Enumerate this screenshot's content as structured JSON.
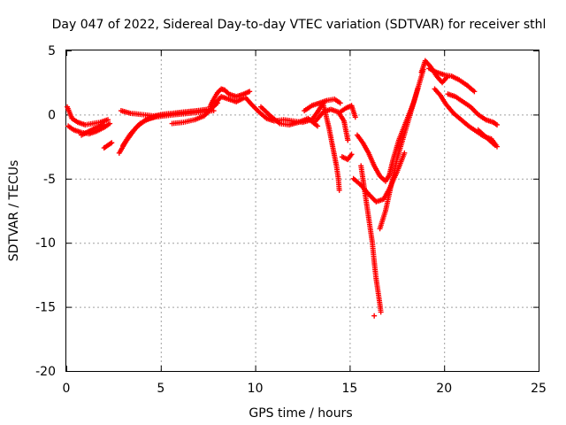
{
  "chart_data": {
    "type": "scatter",
    "title": "Day 047 of 2022, Sidereal Day-to-day VTEC variation (SDTVAR) for receiver sthl",
    "xlabel": "GPS time / hours",
    "ylabel": "SDTVAR / TECUs",
    "xlim": [
      0,
      25
    ],
    "ylim": [
      -20,
      5
    ],
    "grid": true,
    "marker": "plus",
    "x_ticks": [
      0,
      5,
      10,
      15,
      20,
      25
    ],
    "y_ticks": [
      5,
      0,
      -5,
      -10,
      -15,
      -20
    ],
    "x_tick_labels": [
      "0",
      "5",
      "10",
      "15",
      "20",
      "25"
    ],
    "y_tick_labels": [
      "5",
      "0",
      "-5",
      "-10",
      "-15",
      "-20"
    ],
    "series": [
      {
        "name": "SDTVAR",
        "color": "#ff0000",
        "tracks": [
          {
            "name": "track-a",
            "x": [
              0.05,
              0.3,
              0.6,
              1.0,
              1.4,
              1.8,
              2.2
            ],
            "y": [
              0.6,
              -0.3,
              -0.6,
              -0.8,
              -0.7,
              -0.6,
              -0.4
            ]
          },
          {
            "name": "track-b",
            "x": [
              0.1,
              0.4,
              0.8,
              1.2,
              1.6,
              2.0,
              2.3
            ],
            "y": [
              -0.9,
              -1.2,
              -1.4,
              -1.5,
              -1.3,
              -1.0,
              -0.7
            ]
          },
          {
            "name": "track-c",
            "x": [
              0.8,
              1.2,
              1.6,
              2.0
            ],
            "y": [
              -1.6,
              -1.3,
              -1.0,
              -0.8
            ]
          },
          {
            "name": "track-d",
            "x": [
              2.0,
              2.2,
              2.4
            ],
            "y": [
              -2.6,
              -2.4,
              -2.2
            ]
          },
          {
            "name": "track-e",
            "x": [
              2.8,
              3.2,
              3.7,
              4.2,
              4.7,
              5.2,
              5.8,
              6.5,
              7.2,
              7.8
            ],
            "y": [
              -3.0,
              -2.0,
              -1.0,
              -0.4,
              -0.2,
              -0.1,
              0.0,
              0.1,
              0.2,
              0.3
            ]
          },
          {
            "name": "track-f",
            "x": [
              3.0,
              3.4,
              3.9,
              4.4,
              5.0,
              5.6,
              6.2,
              6.9,
              7.4
            ],
            "y": [
              -2.4,
              -1.5,
              -0.7,
              -0.3,
              0.0,
              0.1,
              0.2,
              0.3,
              0.4
            ]
          },
          {
            "name": "track-g",
            "x": [
              2.9,
              3.4,
              4.0,
              4.6,
              5.2,
              5.8,
              6.4,
              7.0,
              7.6
            ],
            "y": [
              0.3,
              0.1,
              0.0,
              -0.1,
              0.0,
              0.1,
              0.2,
              0.3,
              0.4
            ]
          },
          {
            "name": "track-h",
            "x": [
              5.6,
              6.2,
              6.8,
              7.3,
              7.7,
              8.0
            ],
            "y": [
              -0.7,
              -0.6,
              -0.4,
              -0.1,
              0.5,
              0.9
            ]
          },
          {
            "name": "track-i",
            "x": [
              7.6,
              7.8,
              8.0,
              8.2,
              8.4,
              8.6,
              9.0,
              9.4,
              9.7
            ],
            "y": [
              0.6,
              1.2,
              1.7,
              2.0,
              1.9,
              1.6,
              1.4,
              1.6,
              1.8
            ]
          },
          {
            "name": "track-j",
            "x": [
              7.9,
              8.2,
              8.6,
              9.0,
              9.4
            ],
            "y": [
              0.9,
              1.4,
              1.2,
              1.0,
              1.3
            ]
          },
          {
            "name": "track-k",
            "x": [
              9.5,
              9.8,
              10.2,
              10.6,
              11.0,
              11.5,
              12.0,
              12.5,
              13.0,
              13.3,
              13.6
            ],
            "y": [
              1.3,
              0.8,
              0.2,
              -0.3,
              -0.5,
              -0.4,
              -0.5,
              -0.6,
              -0.4,
              0.2,
              0.9
            ]
          },
          {
            "name": "track-l",
            "x": [
              10.3,
              10.8,
              11.3,
              11.8,
              12.3,
              12.8,
              13.3
            ],
            "y": [
              0.6,
              -0.1,
              -0.7,
              -0.8,
              -0.6,
              -0.3,
              -0.9
            ]
          },
          {
            "name": "track-m",
            "x": [
              12.6,
              13.0,
              13.4,
              13.8,
              14.2,
              14.5
            ],
            "y": [
              0.3,
              0.7,
              0.9,
              1.1,
              1.2,
              0.9
            ]
          },
          {
            "name": "track-n",
            "x": [
              13.6,
              13.9,
              14.1,
              14.3,
              14.4,
              14.45
            ],
            "y": [
              0.8,
              -1.0,
              -2.5,
              -4.0,
              -5.0,
              -5.9
            ]
          },
          {
            "name": "track-o",
            "x": [
              13.2,
              13.6,
              14.0,
              14.4,
              14.7,
              14.9
            ],
            "y": [
              -0.5,
              0.2,
              0.4,
              0.2,
              -0.5,
              -2.0
            ]
          },
          {
            "name": "track-p",
            "x": [
              14.5,
              14.8,
              15.1,
              15.3
            ],
            "y": [
              0.2,
              0.5,
              0.7,
              -0.2
            ]
          },
          {
            "name": "track-q",
            "x": [
              14.6,
              14.9,
              15.1
            ],
            "y": [
              -3.3,
              -3.5,
              -3.1
            ]
          },
          {
            "name": "track-r",
            "x": [
              15.6,
              15.8,
              16.0,
              16.2,
              16.3,
              16.4,
              16.5,
              16.6,
              16.65
            ],
            "y": [
              -4.0,
              -6.0,
              -8.0,
              -10.0,
              -11.5,
              -12.8,
              -13.8,
              -14.8,
              -15.4
            ]
          },
          {
            "name": "track-s",
            "x": [
              16.3
            ],
            "y": [
              -15.7
            ]
          },
          {
            "name": "track-t",
            "x": [
              15.4,
              15.7,
              16.0,
              16.3,
              16.6,
              16.9,
              17.1,
              17.3,
              17.6,
              18.0,
              18.4,
              18.7,
              18.9
            ],
            "y": [
              -1.6,
              -2.2,
              -3.0,
              -4.0,
              -4.8,
              -5.2,
              -4.7,
              -3.5,
              -2.0,
              -0.5,
              1.0,
              2.5,
              3.5
            ]
          },
          {
            "name": "track-u",
            "x": [
              15.2,
              15.6,
              16.0,
              16.4,
              16.8,
              17.1,
              17.5,
              17.9
            ],
            "y": [
              -5.0,
              -5.5,
              -6.2,
              -6.8,
              -6.6,
              -5.8,
              -4.5,
              -3.0
            ]
          },
          {
            "name": "track-v",
            "x": [
              16.6,
              16.9,
              17.2,
              17.5,
              17.9,
              18.3,
              18.6
            ],
            "y": [
              -8.9,
              -7.5,
              -5.5,
              -3.5,
              -1.5,
              0.5,
              2.0
            ]
          },
          {
            "name": "track-w",
            "x": [
              18.8,
              19.0,
              19.3,
              19.6,
              19.9,
              20.2
            ],
            "y": [
              3.3,
              4.2,
              3.7,
              3.0,
              2.5,
              3.0
            ]
          },
          {
            "name": "track-x",
            "x": [
              19.2,
              19.6,
              20.0,
              20.4,
              20.8,
              21.2,
              21.6
            ],
            "y": [
              3.6,
              3.3,
              3.1,
              3.0,
              2.7,
              2.3,
              1.8
            ]
          },
          {
            "name": "track-y",
            "x": [
              19.5,
              19.8,
              20.1,
              20.5,
              20.9,
              21.3,
              21.7,
              22.1,
              22.5,
              22.8
            ],
            "y": [
              2.0,
              1.5,
              0.8,
              0.1,
              -0.4,
              -0.9,
              -1.3,
              -1.7,
              -1.9,
              -2.5
            ]
          },
          {
            "name": "track-z",
            "x": [
              20.2,
              20.6,
              21.0,
              21.4,
              21.8,
              22.2,
              22.6,
              22.8
            ],
            "y": [
              1.6,
              1.4,
              1.0,
              0.6,
              0.0,
              -0.4,
              -0.6,
              -0.8
            ]
          },
          {
            "name": "track-aa",
            "x": [
              21.8,
              22.1,
              22.4,
              22.7
            ],
            "y": [
              -1.2,
              -1.6,
              -2.0,
              -2.4
            ]
          }
        ]
      }
    ]
  }
}
